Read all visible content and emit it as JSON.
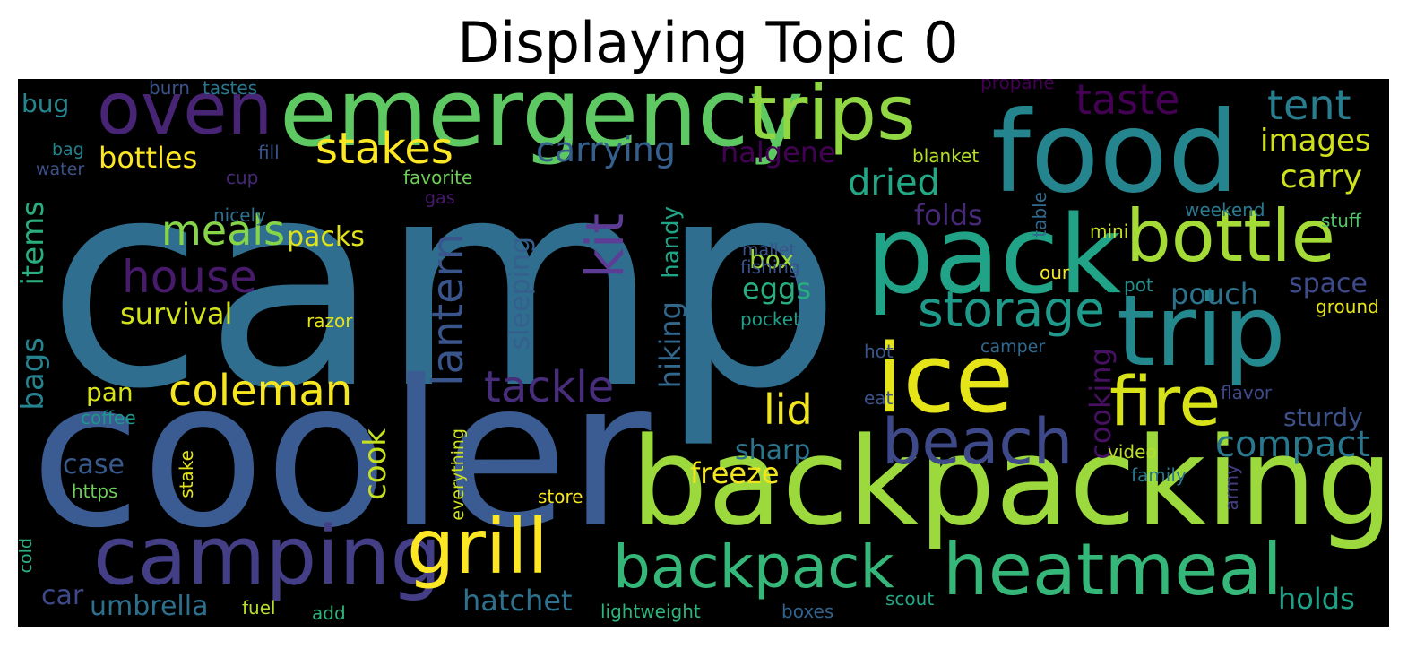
{
  "title": "Displaying Topic 0",
  "words": [
    {
      "text": "camp",
      "color": "#2f6e8e"
    },
    {
      "text": "cooler",
      "color": "#3b5c92"
    },
    {
      "text": "backpacking",
      "color": "#9bd93c"
    },
    {
      "text": "food",
      "color": "#25858e"
    },
    {
      "text": "pack",
      "color": "#20a386"
    },
    {
      "text": "trip",
      "color": "#23898e"
    },
    {
      "text": "emergency",
      "color": "#5ec962"
    },
    {
      "text": "ice",
      "color": "#e5e419"
    },
    {
      "text": "camping",
      "color": "#433e85"
    },
    {
      "text": "trips",
      "color": "#90d743"
    },
    {
      "text": "grill",
      "color": "#fde725"
    },
    {
      "text": "heatmeal",
      "color": "#35b779"
    },
    {
      "text": "bottle",
      "color": "#a5db36"
    },
    {
      "text": "oven",
      "color": "#482475"
    },
    {
      "text": "fire",
      "color": "#d8e219"
    },
    {
      "text": "beach",
      "color": "#3e4989"
    },
    {
      "text": "backpack",
      "color": "#35b779"
    },
    {
      "text": "storage",
      "color": "#1f9a8a"
    },
    {
      "text": "kit",
      "color": "#5c3c94"
    },
    {
      "text": "house",
      "color": "#481a6c"
    },
    {
      "text": "tackle",
      "color": "#472d7b"
    },
    {
      "text": "lantern",
      "color": "#3a548c"
    },
    {
      "text": "coleman",
      "color": "#f6e620"
    },
    {
      "text": "stakes",
      "color": "#fbe723"
    },
    {
      "text": "taste",
      "color": "#440154"
    },
    {
      "text": "tent",
      "color": "#287d8e"
    },
    {
      "text": "meals",
      "color": "#86d549"
    },
    {
      "text": "lid",
      "color": "#f1e51d"
    },
    {
      "text": "dried",
      "color": "#22a884"
    },
    {
      "text": "compact",
      "color": "#2a788e"
    },
    {
      "text": "carrying",
      "color": "#355f8d"
    },
    {
      "text": "bottles",
      "color": "#fde725"
    },
    {
      "text": "images",
      "color": "#d0e11c"
    },
    {
      "text": "carry",
      "color": "#cde11d"
    },
    {
      "text": "sleeping",
      "color": "#355f8d"
    },
    {
      "text": "hiking",
      "color": "#31688e"
    },
    {
      "text": "cook",
      "color": "#c5e021"
    },
    {
      "text": "survival",
      "color": "#d2e21b"
    },
    {
      "text": "items",
      "color": "#29af7f"
    },
    {
      "text": "bags",
      "color": "#26828e"
    },
    {
      "text": "hatchet",
      "color": "#2c728e"
    },
    {
      "text": "umbrella",
      "color": "#2d708e"
    },
    {
      "text": "freeze",
      "color": "#f1e51d"
    },
    {
      "text": "packs",
      "color": "#dfe318"
    },
    {
      "text": "pouch",
      "color": "#2c728e"
    },
    {
      "text": "holds",
      "color": "#1fa188"
    },
    {
      "text": "cooking",
      "color": "#471063"
    },
    {
      "text": "folds",
      "color": "#482878"
    },
    {
      "text": "nalgene",
      "color": "#440154"
    },
    {
      "text": "eggs",
      "color": "#29af7f"
    },
    {
      "text": "handy",
      "color": "#20a486"
    },
    {
      "text": "pan",
      "color": "#d8e219"
    },
    {
      "text": "space",
      "color": "#3e4a89"
    },
    {
      "text": "case",
      "color": "#38598c"
    },
    {
      "text": "sturdy",
      "color": "#3b528b"
    },
    {
      "text": "sharp",
      "color": "#2b748e"
    },
    {
      "text": "car",
      "color": "#3e4989"
    },
    {
      "text": "bug",
      "color": "#24868e"
    },
    {
      "text": "box",
      "color": "#9dd93b"
    },
    {
      "text": "tastes",
      "color": "#2a788e"
    },
    {
      "text": "burn",
      "color": "#3b528b"
    },
    {
      "text": "propane",
      "color": "#440154"
    },
    {
      "text": "bag",
      "color": "#25838e"
    },
    {
      "text": "fill",
      "color": "#3b528b"
    },
    {
      "text": "water",
      "color": "#3b528b"
    },
    {
      "text": "cup",
      "color": "#482878"
    },
    {
      "text": "favorite",
      "color": "#6ece58"
    },
    {
      "text": "blanket",
      "color": "#b5de2b"
    },
    {
      "text": "gas",
      "color": "#481a6c"
    },
    {
      "text": "nicely",
      "color": "#2e6e8e"
    },
    {
      "text": "table",
      "color": "#31688e"
    },
    {
      "text": "weekend",
      "color": "#2a778e"
    },
    {
      "text": "stuff",
      "color": "#54c568"
    },
    {
      "text": "mini",
      "color": "#cae11f"
    },
    {
      "text": "mallet",
      "color": "#3b528b"
    },
    {
      "text": "fishing",
      "color": "#3b528b"
    },
    {
      "text": "our",
      "color": "#f6e620"
    },
    {
      "text": "pot",
      "color": "#21908d"
    },
    {
      "text": "ground",
      "color": "#e5e419"
    },
    {
      "text": "razor",
      "color": "#e5e419"
    },
    {
      "text": "pocket",
      "color": "#1fa088"
    },
    {
      "text": "camper",
      "color": "#31688e"
    },
    {
      "text": "hot",
      "color": "#39568c"
    },
    {
      "text": "flavor",
      "color": "#3e4a89"
    },
    {
      "text": "eat",
      "color": "#3b528b"
    },
    {
      "text": "coffee",
      "color": "#1f968b"
    },
    {
      "text": "video",
      "color": "#b8de29"
    },
    {
      "text": "family",
      "color": "#2a788e"
    },
    {
      "text": "https",
      "color": "#6ece58"
    },
    {
      "text": "stake",
      "color": "#e5e419"
    },
    {
      "text": "everything",
      "color": "#cde11d"
    },
    {
      "text": "store",
      "color": "#f6e620"
    },
    {
      "text": "army",
      "color": "#433e85"
    },
    {
      "text": "cold",
      "color": "#2ab07f"
    },
    {
      "text": "fuel",
      "color": "#b8de29"
    },
    {
      "text": "add",
      "color": "#2fb47c"
    },
    {
      "text": "lightweight",
      "color": "#2fb47c"
    },
    {
      "text": "boxes",
      "color": "#33638d"
    },
    {
      "text": "scout",
      "color": "#22a884"
    }
  ]
}
